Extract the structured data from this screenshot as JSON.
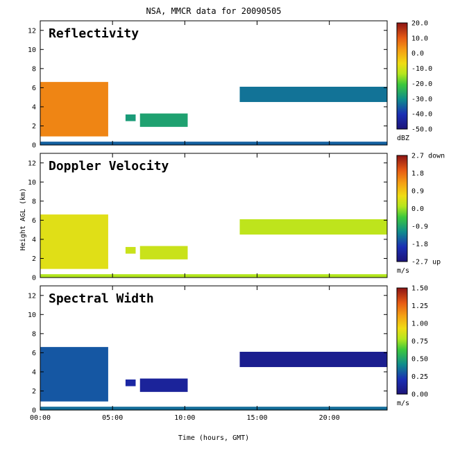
{
  "figure": {
    "title": "NSA, MMCR data for 20090505",
    "xlabel": "Time (hours, GMT)",
    "ylabel": "Height AGL (km)"
  },
  "chart_data": [
    {
      "type": "heatmap",
      "title": "Reflectivity",
      "x_ticks": [
        "00:00",
        "05:00",
        "10:00",
        "15:00",
        "20:00"
      ],
      "x_tick_hours": [
        0,
        5,
        10,
        15,
        20
      ],
      "xlim": [
        0,
        24
      ],
      "y_ticks": [
        "0",
        "2",
        "4",
        "6",
        "8",
        "10",
        "12"
      ],
      "ylim": [
        0,
        13
      ],
      "colorbar": {
        "ticks": [
          "20.0",
          "10.0",
          "0.0",
          "-10.0",
          "-20.0",
          "-30.0",
          "-40.0",
          "-50.0"
        ],
        "unit": "dBZ",
        "range": [
          -50,
          20
        ]
      },
      "regions": [
        {
          "t0": 0.0,
          "t1": 4.7,
          "h0": 0.9,
          "h1": 6.6,
          "value": 5
        },
        {
          "t0": 5.9,
          "t1": 6.6,
          "h0": 2.5,
          "h1": 3.2,
          "value": -28
        },
        {
          "t0": 6.9,
          "t1": 10.2,
          "h0": 1.9,
          "h1": 3.3,
          "value": -27
        },
        {
          "t0": 13.8,
          "t1": 24.0,
          "h0": 4.5,
          "h1": 6.1,
          "value": -33
        },
        {
          "t0": 0.0,
          "t1": 24.0,
          "h0": 0.0,
          "h1": 0.35,
          "value": -35
        }
      ]
    },
    {
      "type": "heatmap",
      "title": "Doppler Velocity",
      "x_ticks": [
        "00:00",
        "05:00",
        "10:00",
        "15:00",
        "20:00"
      ],
      "x_tick_hours": [
        0,
        5,
        10,
        15,
        20
      ],
      "xlim": [
        0,
        24
      ],
      "y_ticks": [
        "0",
        "2",
        "4",
        "6",
        "8",
        "10",
        "12"
      ],
      "ylim": [
        0,
        13
      ],
      "colorbar": {
        "ticks": [
          "2.7 down",
          "1.8",
          "0.9",
          "0.0",
          "-0.9",
          "-1.8",
          "-2.7 up"
        ],
        "unit": "m/s",
        "range": [
          -2.7,
          2.7
        ]
      },
      "regions": [
        {
          "t0": 0.0,
          "t1": 4.7,
          "h0": 0.9,
          "h1": 6.6,
          "value": 0.5
        },
        {
          "t0": 5.9,
          "t1": 6.6,
          "h0": 2.5,
          "h1": 3.2,
          "value": 0.3
        },
        {
          "t0": 6.9,
          "t1": 10.2,
          "h0": 1.9,
          "h1": 3.3,
          "value": 0.3
        },
        {
          "t0": 13.8,
          "t1": 24.0,
          "h0": 4.5,
          "h1": 6.1,
          "value": 0.2
        },
        {
          "t0": 0.0,
          "t1": 24.0,
          "h0": 0.0,
          "h1": 0.35,
          "value": 0.1
        }
      ]
    },
    {
      "type": "heatmap",
      "title": "Spectral Width",
      "x_ticks": [
        "00:00",
        "05:00",
        "10:00",
        "15:00",
        "20:00"
      ],
      "x_tick_hours": [
        0,
        5,
        10,
        15,
        20
      ],
      "xlim": [
        0,
        24
      ],
      "y_ticks": [
        "0",
        "2",
        "4",
        "6",
        "8",
        "10",
        "12"
      ],
      "ylim": [
        0,
        13
      ],
      "colorbar": {
        "ticks": [
          "1.50",
          "1.25",
          "1.00",
          "0.75",
          "0.50",
          "0.25",
          "0.00"
        ],
        "unit": "m/s",
        "range": [
          0,
          1.5
        ]
      },
      "regions": [
        {
          "t0": 0.0,
          "t1": 4.7,
          "h0": 0.9,
          "h1": 6.6,
          "value": 0.3
        },
        {
          "t0": 5.9,
          "t1": 6.6,
          "h0": 2.5,
          "h1": 3.2,
          "value": 0.15
        },
        {
          "t0": 6.9,
          "t1": 10.2,
          "h0": 1.9,
          "h1": 3.3,
          "value": 0.12
        },
        {
          "t0": 13.8,
          "t1": 24.0,
          "h0": 4.5,
          "h1": 6.1,
          "value": 0.08
        },
        {
          "t0": 0.0,
          "t1": 24.0,
          "h0": 0.0,
          "h1": 0.35,
          "value": 0.35
        }
      ]
    }
  ]
}
